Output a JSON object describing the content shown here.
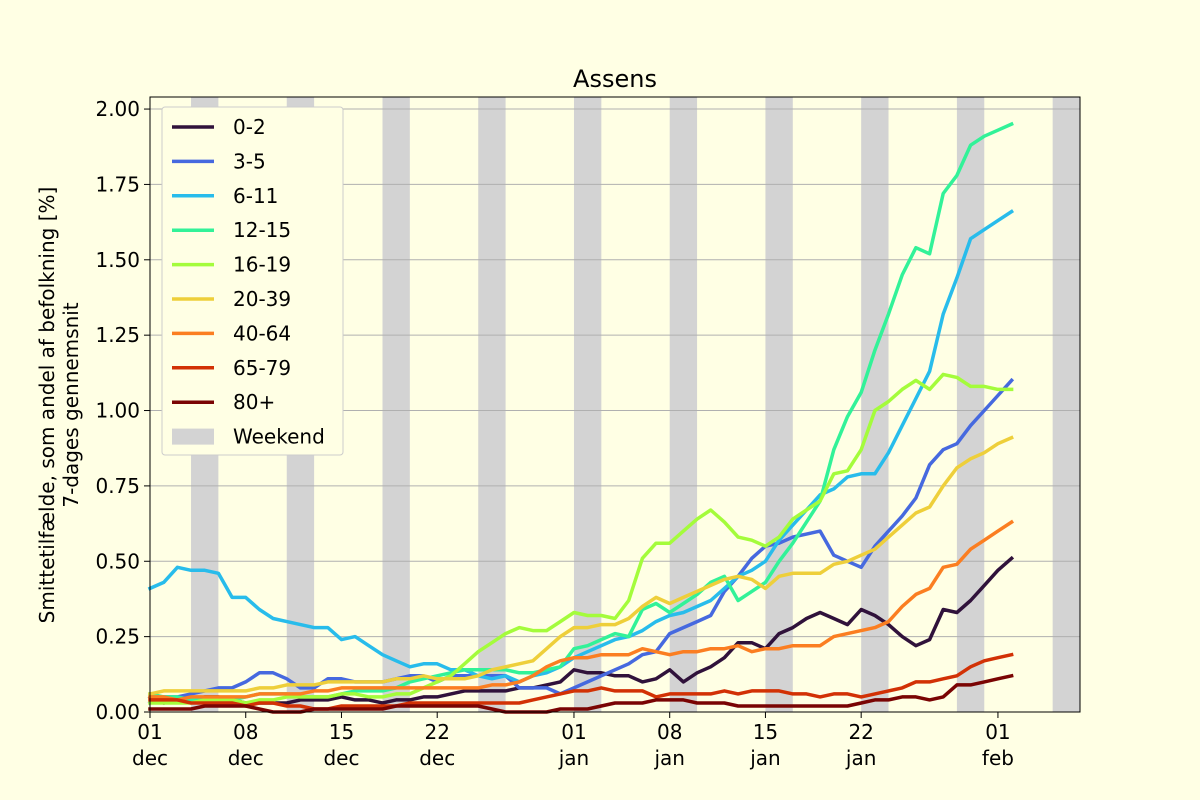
{
  "chart_data": {
    "type": "line",
    "title": "Assens",
    "xlabel": "",
    "ylabel_lines": [
      "Smittetilfælde, som andel af befolkning [%]",
      "7-dages gennemsnit"
    ],
    "ylim": [
      0,
      2.04
    ],
    "yticks": [
      "0.00",
      "0.25",
      "0.50",
      "0.75",
      "1.00",
      "1.25",
      "1.50",
      "1.75",
      "2.00"
    ],
    "ytick_values": [
      0,
      0.25,
      0.5,
      0.75,
      1.0,
      1.25,
      1.5,
      1.75,
      2.0
    ],
    "x_start": "2021-12-01",
    "xlim": [
      "2021-12-01",
      "2022-02-07"
    ],
    "xticks": [
      {
        "date": "2021-12-01",
        "day": "01",
        "month": "dec"
      },
      {
        "date": "2021-12-08",
        "day": "08",
        "month": "dec"
      },
      {
        "date": "2021-12-15",
        "day": "15",
        "month": "dec"
      },
      {
        "date": "2021-12-22",
        "day": "22",
        "month": "dec"
      },
      {
        "date": "2022-01-01",
        "day": "01",
        "month": "jan"
      },
      {
        "date": "2022-01-08",
        "day": "08",
        "month": "jan"
      },
      {
        "date": "2022-01-15",
        "day": "15",
        "month": "jan"
      },
      {
        "date": "2022-01-22",
        "day": "22",
        "month": "jan"
      },
      {
        "date": "2022-02-01",
        "day": "01",
        "month": "feb"
      }
    ],
    "grid": "y",
    "legend_position": "top-left",
    "weekend_label": "Weekend",
    "weekend_color": "#d3d3d3",
    "weekends": [
      [
        "2021-12-04",
        "2021-12-06"
      ],
      [
        "2021-12-11",
        "2021-12-13"
      ],
      [
        "2021-12-18",
        "2021-12-20"
      ],
      [
        "2021-12-25",
        "2021-12-27"
      ],
      [
        "2022-01-01",
        "2022-01-03"
      ],
      [
        "2022-01-08",
        "2022-01-10"
      ],
      [
        "2022-01-15",
        "2022-01-17"
      ],
      [
        "2022-01-22",
        "2022-01-24"
      ],
      [
        "2022-01-29",
        "2022-01-31"
      ],
      [
        "2022-02-05",
        "2022-02-07"
      ]
    ],
    "series": [
      {
        "name": "0-2",
        "color": "#30123b",
        "values": [
          0.05,
          0.03,
          0.04,
          0.04,
          0.05,
          0.05,
          0.04,
          0.03,
          0.03,
          0.03,
          0.03,
          0.04,
          0.04,
          0.04,
          0.05,
          0.04,
          0.04,
          0.03,
          0.04,
          0.04,
          0.05,
          0.05,
          0.06,
          0.07,
          0.07,
          0.07,
          0.07,
          0.08,
          0.08,
          0.09,
          0.1,
          0.14,
          0.13,
          0.13,
          0.12,
          0.12,
          0.1,
          0.11,
          0.14,
          0.1,
          0.13,
          0.15,
          0.18,
          0.23,
          0.23,
          0.21,
          0.26,
          0.28,
          0.31,
          0.33,
          0.31,
          0.29,
          0.34,
          0.32,
          0.29,
          0.25,
          0.22,
          0.24,
          0.34,
          0.33,
          0.37,
          0.42,
          0.47,
          0.51
        ]
      },
      {
        "name": "3-5",
        "color": "#4669df",
        "values": [
          0.03,
          0.05,
          0.05,
          0.06,
          0.07,
          0.08,
          0.08,
          0.1,
          0.13,
          0.13,
          0.11,
          0.08,
          0.08,
          0.11,
          0.11,
          0.1,
          0.1,
          0.1,
          0.11,
          0.12,
          0.12,
          0.1,
          0.12,
          0.12,
          0.12,
          0.12,
          0.12,
          0.08,
          0.08,
          0.08,
          0.06,
          0.08,
          0.1,
          0.12,
          0.14,
          0.16,
          0.19,
          0.2,
          0.26,
          0.28,
          0.3,
          0.32,
          0.4,
          0.45,
          0.51,
          0.55,
          0.56,
          0.58,
          0.59,
          0.6,
          0.52,
          0.5,
          0.48,
          0.55,
          0.6,
          0.65,
          0.71,
          0.82,
          0.87,
          0.89,
          0.95,
          1.0,
          1.05,
          1.1
        ]
      },
      {
        "name": "6-11",
        "color": "#28bceb",
        "values": [
          0.41,
          0.43,
          0.48,
          0.47,
          0.47,
          0.46,
          0.38,
          0.38,
          0.34,
          0.31,
          0.3,
          0.29,
          0.28,
          0.28,
          0.24,
          0.25,
          0.22,
          0.19,
          0.17,
          0.15,
          0.16,
          0.16,
          0.14,
          0.14,
          0.12,
          0.11,
          0.12,
          0.1,
          0.12,
          0.13,
          0.15,
          0.18,
          0.2,
          0.22,
          0.24,
          0.25,
          0.27,
          0.3,
          0.32,
          0.33,
          0.35,
          0.37,
          0.41,
          0.45,
          0.47,
          0.5,
          0.57,
          0.62,
          0.67,
          0.72,
          0.74,
          0.78,
          0.79,
          0.79,
          0.86,
          0.95,
          1.04,
          1.13,
          1.32,
          1.44,
          1.57,
          1.6,
          1.63,
          1.66
        ]
      },
      {
        "name": "12-15",
        "color": "#32f298",
        "values": [
          0.06,
          0.05,
          0.05,
          0.04,
          0.04,
          0.03,
          0.04,
          0.05,
          0.06,
          0.06,
          0.06,
          0.05,
          0.05,
          0.05,
          0.06,
          0.07,
          0.07,
          0.07,
          0.08,
          0.1,
          0.11,
          0.12,
          0.13,
          0.14,
          0.14,
          0.14,
          0.14,
          0.13,
          0.13,
          0.14,
          0.15,
          0.21,
          0.22,
          0.24,
          0.26,
          0.25,
          0.34,
          0.36,
          0.33,
          0.36,
          0.39,
          0.43,
          0.45,
          0.37,
          0.4,
          0.43,
          0.5,
          0.56,
          0.63,
          0.7,
          0.87,
          0.98,
          1.06,
          1.2,
          1.32,
          1.45,
          1.54,
          1.52,
          1.72,
          1.78,
          1.88,
          1.91,
          1.93,
          1.95
        ]
      },
      {
        "name": "16-19",
        "color": "#a4fc3b",
        "values": [
          0.03,
          0.03,
          0.03,
          0.03,
          0.04,
          0.04,
          0.04,
          0.03,
          0.04,
          0.04,
          0.05,
          0.05,
          0.05,
          0.05,
          0.06,
          0.06,
          0.05,
          0.05,
          0.06,
          0.06,
          0.08,
          0.1,
          0.12,
          0.16,
          0.2,
          0.23,
          0.26,
          0.28,
          0.27,
          0.27,
          0.3,
          0.33,
          0.32,
          0.32,
          0.31,
          0.37,
          0.51,
          0.56,
          0.56,
          0.6,
          0.64,
          0.67,
          0.63,
          0.58,
          0.57,
          0.55,
          0.58,
          0.64,
          0.67,
          0.7,
          0.79,
          0.8,
          0.87,
          1.0,
          1.03,
          1.07,
          1.1,
          1.07,
          1.12,
          1.11,
          1.08,
          1.08,
          1.07,
          1.07
        ]
      },
      {
        "name": "20-39",
        "color": "#eecf3a",
        "values": [
          0.06,
          0.07,
          0.07,
          0.07,
          0.07,
          0.07,
          0.07,
          0.07,
          0.08,
          0.08,
          0.09,
          0.09,
          0.09,
          0.1,
          0.1,
          0.1,
          0.1,
          0.1,
          0.11,
          0.11,
          0.12,
          0.11,
          0.11,
          0.11,
          0.12,
          0.14,
          0.15,
          0.16,
          0.17,
          0.21,
          0.25,
          0.28,
          0.28,
          0.29,
          0.29,
          0.31,
          0.35,
          0.38,
          0.36,
          0.38,
          0.4,
          0.42,
          0.44,
          0.45,
          0.44,
          0.41,
          0.45,
          0.46,
          0.46,
          0.46,
          0.49,
          0.5,
          0.52,
          0.54,
          0.58,
          0.62,
          0.66,
          0.68,
          0.75,
          0.81,
          0.84,
          0.86,
          0.89,
          0.91
        ]
      },
      {
        "name": "40-64",
        "color": "#fb7e21",
        "values": [
          0.05,
          0.05,
          0.04,
          0.05,
          0.05,
          0.05,
          0.05,
          0.05,
          0.06,
          0.06,
          0.06,
          0.06,
          0.07,
          0.07,
          0.08,
          0.08,
          0.08,
          0.08,
          0.08,
          0.08,
          0.08,
          0.08,
          0.08,
          0.08,
          0.08,
          0.09,
          0.09,
          0.1,
          0.12,
          0.15,
          0.17,
          0.18,
          0.18,
          0.19,
          0.19,
          0.19,
          0.21,
          0.2,
          0.19,
          0.2,
          0.2,
          0.21,
          0.21,
          0.22,
          0.2,
          0.21,
          0.21,
          0.22,
          0.22,
          0.22,
          0.25,
          0.26,
          0.27,
          0.28,
          0.3,
          0.35,
          0.39,
          0.41,
          0.48,
          0.49,
          0.54,
          0.57,
          0.6,
          0.63
        ]
      },
      {
        "name": "65-79",
        "color": "#d23105",
        "values": [
          0.04,
          0.04,
          0.04,
          0.03,
          0.03,
          0.03,
          0.03,
          0.02,
          0.03,
          0.03,
          0.02,
          0.02,
          0.01,
          0.01,
          0.02,
          0.02,
          0.02,
          0.02,
          0.02,
          0.03,
          0.03,
          0.03,
          0.03,
          0.03,
          0.03,
          0.03,
          0.03,
          0.03,
          0.04,
          0.05,
          0.06,
          0.07,
          0.07,
          0.08,
          0.07,
          0.07,
          0.07,
          0.05,
          0.06,
          0.06,
          0.06,
          0.06,
          0.07,
          0.06,
          0.07,
          0.07,
          0.07,
          0.06,
          0.06,
          0.05,
          0.06,
          0.06,
          0.05,
          0.06,
          0.07,
          0.08,
          0.1,
          0.1,
          0.11,
          0.12,
          0.15,
          0.17,
          0.18,
          0.19
        ]
      },
      {
        "name": "80+",
        "color": "#7a0403",
        "values": [
          0.01,
          0.01,
          0.01,
          0.01,
          0.02,
          0.02,
          0.02,
          0.02,
          0.01,
          0.0,
          0.0,
          0.0,
          0.01,
          0.01,
          0.01,
          0.01,
          0.01,
          0.01,
          0.02,
          0.02,
          0.02,
          0.02,
          0.02,
          0.02,
          0.02,
          0.01,
          0.0,
          0.0,
          0.0,
          0.0,
          0.01,
          0.01,
          0.01,
          0.02,
          0.03,
          0.03,
          0.03,
          0.04,
          0.04,
          0.04,
          0.03,
          0.03,
          0.03,
          0.02,
          0.02,
          0.02,
          0.02,
          0.02,
          0.02,
          0.02,
          0.02,
          0.02,
          0.03,
          0.04,
          0.04,
          0.05,
          0.05,
          0.04,
          0.05,
          0.09,
          0.09,
          0.1,
          0.11,
          0.12
        ]
      }
    ]
  }
}
